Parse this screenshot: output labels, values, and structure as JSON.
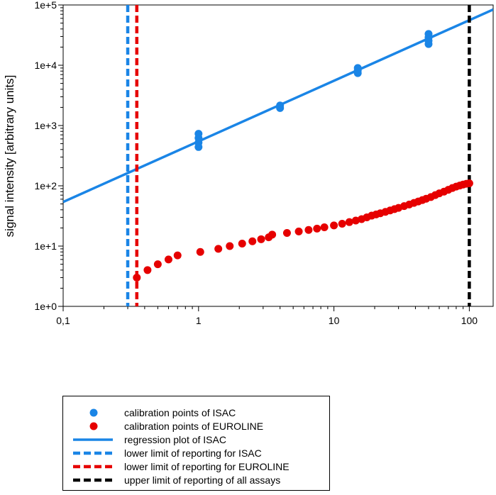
{
  "colors": {
    "isac": "#1a85e6",
    "euroline": "#e60000",
    "upper": "#000000",
    "axis": "#000000"
  },
  "chart_data": {
    "type": "scatter",
    "xscale": "log",
    "yscale": "log",
    "xlim": [
      0.1,
      150
    ],
    "ylim": [
      1,
      100000
    ],
    "xlabel": "",
    "ylabel": "signal intensity [arbitrary units]",
    "grid": false,
    "legend_position": "bottom",
    "x_ticks": [
      {
        "value": 0.1,
        "label": "0,1"
      },
      {
        "value": 1,
        "label": "1"
      },
      {
        "value": 10,
        "label": "10"
      },
      {
        "value": 100,
        "label": "100"
      }
    ],
    "y_ticks": [
      {
        "value": 1,
        "label": "1e+0"
      },
      {
        "value": 10,
        "label": "1e+1"
      },
      {
        "value": 100,
        "label": "1e+2"
      },
      {
        "value": 1000,
        "label": "1e+3"
      },
      {
        "value": 10000,
        "label": "1e+4"
      },
      {
        "value": 100000,
        "label": "1e+5"
      }
    ],
    "series": [
      {
        "name": "calibration points of ISAC",
        "kind": "scatter",
        "color": "#1a85e6",
        "x": [
          1,
          1,
          1,
          1,
          4,
          4,
          15,
          15,
          15,
          50,
          50,
          50,
          50
        ],
        "y": [
          440,
          520,
          620,
          730,
          1950,
          2150,
          7400,
          8200,
          9000,
          22500,
          25500,
          29000,
          33000
        ]
      },
      {
        "name": "calibration points of EUROLINE",
        "kind": "scatter",
        "color": "#e60000",
        "x": [
          0.35,
          0.42,
          0.5,
          0.6,
          0.7,
          1.03,
          1.4,
          1.7,
          2.1,
          2.5,
          2.9,
          3.3,
          3.5,
          4.5,
          5.5,
          6.5,
          7.5,
          8.5,
          10,
          11.5,
          13,
          14.5,
          16,
          17.5,
          19,
          20.5,
          22,
          24,
          26,
          28,
          30,
          33,
          36,
          39,
          42,
          45,
          48,
          52,
          56,
          60,
          65,
          70,
          75,
          80,
          85,
          90,
          95,
          100
        ],
        "y": [
          3,
          4,
          5,
          6,
          7,
          8,
          9,
          10,
          11,
          12,
          13,
          14,
          15.5,
          16.5,
          17.5,
          18.5,
          19.5,
          20.5,
          22,
          23.5,
          25,
          26.5,
          28,
          30,
          32,
          33.5,
          35,
          37,
          39,
          41,
          43,
          46,
          49,
          52,
          55,
          58,
          61,
          65,
          70,
          75,
          80,
          86,
          92,
          97,
          101,
          105,
          108,
          110
        ]
      },
      {
        "name": "regression plot of ISAC",
        "kind": "line",
        "style": "solid",
        "color": "#1a85e6",
        "x": [
          0.1,
          150
        ],
        "y": [
          54,
          84000
        ]
      },
      {
        "name": "lower limit of reporting for ISAC",
        "kind": "vline",
        "style": "dashed",
        "color": "#1a85e6",
        "x": 0.3
      },
      {
        "name": "lower limit of reporting for EUROLINE",
        "kind": "vline",
        "style": "dashed",
        "color": "#e60000",
        "x": 0.35
      },
      {
        "name": "upper limit of reporting of all assays",
        "kind": "vline",
        "style": "dashed",
        "color": "#000000",
        "x": 100
      }
    ]
  },
  "legend": {
    "items": [
      {
        "label": "calibration points of ISAC",
        "marker": "dot",
        "color": "#1a85e6"
      },
      {
        "label": "calibration points of EUROLINE",
        "marker": "dot",
        "color": "#e60000"
      },
      {
        "label": "regression plot of ISAC",
        "marker": "solid",
        "color": "#1a85e6"
      },
      {
        "label": "lower limit of reporting for ISAC",
        "marker": "dashed",
        "color": "#1a85e6"
      },
      {
        "label": "lower limit of reporting for EUROLINE",
        "marker": "dashed",
        "color": "#e60000"
      },
      {
        "label": "upper limit of reporting of all assays",
        "marker": "dashed",
        "color": "#000000"
      }
    ]
  }
}
